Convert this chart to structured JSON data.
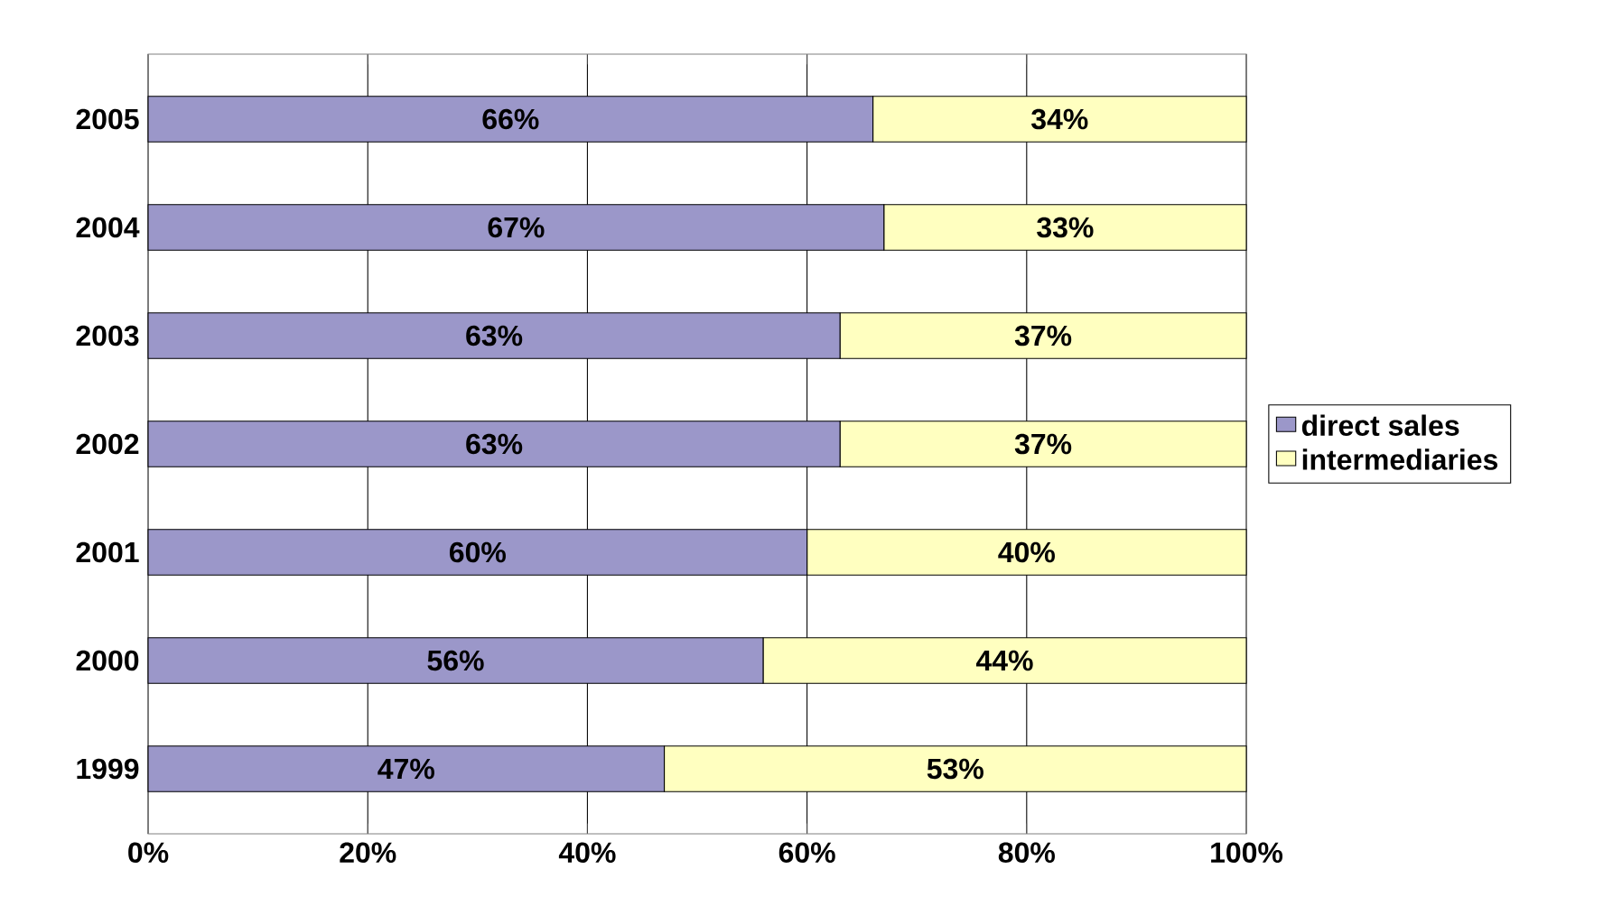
{
  "chart_data": {
    "type": "bar",
    "orientation": "horizontal",
    "stacked": true,
    "categories": [
      "2005",
      "2004",
      "2003",
      "2002",
      "2001",
      "2000",
      "1999"
    ],
    "series": [
      {
        "name": "direct sales",
        "color": "#9b97c9",
        "values": [
          66,
          67,
          63,
          63,
          60,
          56,
          47
        ],
        "value_labels": [
          "66%",
          "67%",
          "63%",
          "63%",
          "60%",
          "56%",
          "47%"
        ]
      },
      {
        "name": "intermediaries",
        "color": "#ffffc0",
        "values": [
          34,
          33,
          37,
          37,
          40,
          44,
          53
        ],
        "value_labels": [
          "34%",
          "33%",
          "37%",
          "37%",
          "40%",
          "44%",
          "53%"
        ]
      }
    ],
    "xlim": [
      0,
      100
    ],
    "xticks": [
      {
        "value": 0,
        "label": "0%"
      },
      {
        "value": 20,
        "label": "20%"
      },
      {
        "value": 40,
        "label": "40%"
      },
      {
        "value": 60,
        "label": "60%"
      },
      {
        "value": 80,
        "label": "80%"
      },
      {
        "value": 100,
        "label": "100%"
      }
    ],
    "grid": "x",
    "legend": "right"
  }
}
